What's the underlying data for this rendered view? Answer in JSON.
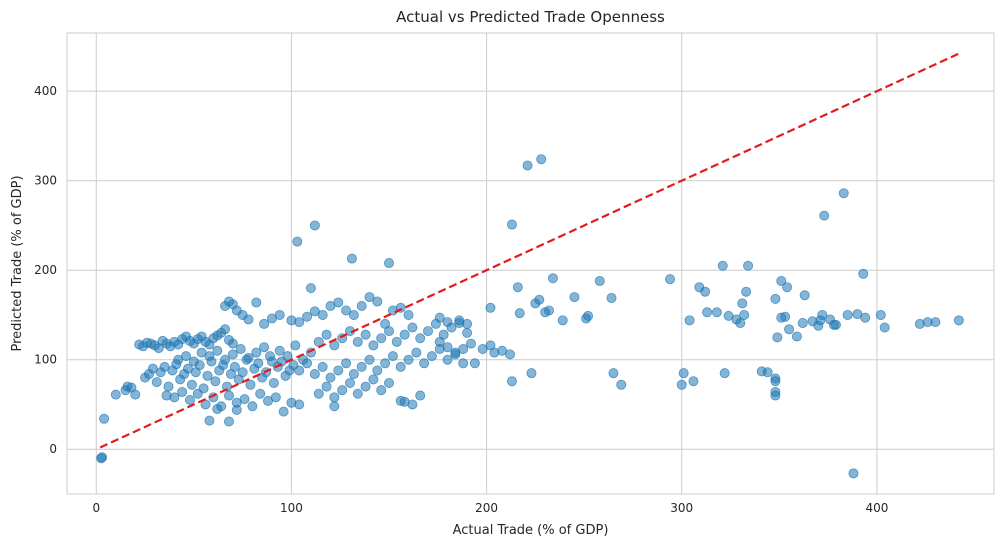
{
  "chart_data": {
    "type": "scatter",
    "title": "Actual vs Predicted Trade Openness",
    "xlabel": "Actual Trade (% of GDP)",
    "ylabel": "Predicted Trade (% of GDP)",
    "xlim": [
      -15,
      460
    ],
    "ylim": [
      -50,
      465
    ],
    "xticks": [
      0,
      100,
      200,
      300,
      400
    ],
    "yticks": [
      0,
      100,
      200,
      300,
      400
    ],
    "grid": true,
    "point_color": "#1f77b4",
    "point_opacity": 0.55,
    "reference_line": {
      "x": [
        2,
        442
      ],
      "y": [
        2,
        442
      ],
      "color": "#e41a1c",
      "style": "dashed"
    },
    "series": [
      {
        "points": [
          [
            2.5,
            -10
          ],
          [
            3,
            -9
          ],
          [
            4,
            34
          ],
          [
            10,
            61
          ],
          [
            15,
            66
          ],
          [
            16,
            70
          ],
          [
            18,
            69
          ],
          [
            20,
            61
          ],
          [
            22,
            117
          ],
          [
            24,
            115
          ],
          [
            26,
            119
          ],
          [
            28,
            118
          ],
          [
            30,
            116
          ],
          [
            32,
            113
          ],
          [
            34,
            121
          ],
          [
            36,
            118
          ],
          [
            38,
            115
          ],
          [
            40,
            120
          ],
          [
            42,
            117
          ],
          [
            44,
            123
          ],
          [
            46,
            126
          ],
          [
            48,
            121
          ],
          [
            50,
            118
          ],
          [
            52,
            123
          ],
          [
            54,
            126
          ],
          [
            56,
            120
          ],
          [
            58,
            117
          ],
          [
            60,
            124
          ],
          [
            62,
            127
          ],
          [
            64,
            130
          ],
          [
            66,
            134
          ],
          [
            68,
            122
          ],
          [
            70,
            118
          ],
          [
            25,
            80
          ],
          [
            27,
            84
          ],
          [
            29,
            90
          ],
          [
            31,
            75
          ],
          [
            33,
            86
          ],
          [
            35,
            92
          ],
          [
            37,
            70
          ],
          [
            39,
            88
          ],
          [
            41,
            95
          ],
          [
            43,
            78
          ],
          [
            45,
            84
          ],
          [
            47,
            90
          ],
          [
            49,
            72
          ],
          [
            51,
            86
          ],
          [
            53,
            94
          ],
          [
            55,
            68
          ],
          [
            57,
            82
          ],
          [
            59,
            98
          ],
          [
            61,
            76
          ],
          [
            63,
            88
          ],
          [
            65,
            94
          ],
          [
            67,
            70
          ],
          [
            69,
            84
          ],
          [
            71,
            92
          ],
          [
            73,
            78
          ],
          [
            75,
            86
          ],
          [
            77,
            100
          ],
          [
            79,
            72
          ],
          [
            81,
            90
          ],
          [
            83,
            96
          ],
          [
            85,
            80
          ],
          [
            87,
            86
          ],
          [
            89,
            104
          ],
          [
            91,
            74
          ],
          [
            93,
            92
          ],
          [
            95,
            98
          ],
          [
            97,
            82
          ],
          [
            99,
            88
          ],
          [
            101,
            94
          ],
          [
            36,
            60
          ],
          [
            40,
            58
          ],
          [
            44,
            64
          ],
          [
            48,
            55
          ],
          [
            52,
            62
          ],
          [
            56,
            50
          ],
          [
            60,
            58
          ],
          [
            64,
            48
          ],
          [
            68,
            60
          ],
          [
            72,
            52
          ],
          [
            76,
            56
          ],
          [
            80,
            48
          ],
          [
            84,
            62
          ],
          [
            88,
            54
          ],
          [
            92,
            58
          ],
          [
            96,
            42
          ],
          [
            100,
            52
          ],
          [
            104,
            50
          ],
          [
            58,
            32
          ],
          [
            68,
            31
          ],
          [
            62,
            45
          ],
          [
            72,
            44
          ],
          [
            42,
            100
          ],
          [
            46,
            104
          ],
          [
            50,
            98
          ],
          [
            54,
            108
          ],
          [
            58,
            104
          ],
          [
            62,
            110
          ],
          [
            66,
            100
          ],
          [
            70,
            106
          ],
          [
            74,
            112
          ],
          [
            78,
            102
          ],
          [
            82,
            108
          ],
          [
            86,
            114
          ],
          [
            90,
            98
          ],
          [
            94,
            110
          ],
          [
            98,
            104
          ],
          [
            102,
            116
          ],
          [
            106,
            100
          ],
          [
            110,
            108
          ],
          [
            66,
            160
          ],
          [
            68,
            165
          ],
          [
            70,
            162
          ],
          [
            72,
            155
          ],
          [
            75,
            150
          ],
          [
            82,
            164
          ],
          [
            78,
            145
          ],
          [
            86,
            140
          ],
          [
            90,
            146
          ],
          [
            94,
            150
          ],
          [
            100,
            144
          ],
          [
            104,
            142
          ],
          [
            108,
            148
          ],
          [
            112,
            154
          ],
          [
            110,
            180
          ],
          [
            103,
            232
          ],
          [
            112,
            250
          ],
          [
            131,
            213
          ],
          [
            150,
            208
          ],
          [
            104,
            88
          ],
          [
            108,
            96
          ],
          [
            112,
            84
          ],
          [
            116,
            92
          ],
          [
            120,
            80
          ],
          [
            124,
            88
          ],
          [
            128,
            96
          ],
          [
            132,
            84
          ],
          [
            136,
            92
          ],
          [
            140,
            100
          ],
          [
            144,
            88
          ],
          [
            148,
            96
          ],
          [
            152,
            104
          ],
          [
            156,
            92
          ],
          [
            160,
            100
          ],
          [
            164,
            108
          ],
          [
            168,
            96
          ],
          [
            172,
            104
          ],
          [
            176,
            112
          ],
          [
            180,
            100
          ],
          [
            184,
            108
          ],
          [
            188,
            96
          ],
          [
            114,
            62
          ],
          [
            118,
            70
          ],
          [
            122,
            58
          ],
          [
            126,
            66
          ],
          [
            130,
            74
          ],
          [
            134,
            62
          ],
          [
            138,
            70
          ],
          [
            142,
            78
          ],
          [
            146,
            66
          ],
          [
            150,
            74
          ],
          [
            122,
            48
          ],
          [
            156,
            54
          ],
          [
            158,
            53
          ],
          [
            162,
            50
          ],
          [
            166,
            60
          ],
          [
            114,
            120
          ],
          [
            118,
            128
          ],
          [
            122,
            116
          ],
          [
            126,
            124
          ],
          [
            130,
            132
          ],
          [
            134,
            120
          ],
          [
            138,
            128
          ],
          [
            142,
            116
          ],
          [
            146,
            124
          ],
          [
            150,
            132
          ],
          [
            154,
            120
          ],
          [
            158,
            128
          ],
          [
            162,
            136
          ],
          [
            166,
            124
          ],
          [
            170,
            132
          ],
          [
            174,
            140
          ],
          [
            178,
            128
          ],
          [
            182,
            136
          ],
          [
            186,
            144
          ],
          [
            190,
            130
          ],
          [
            116,
            150
          ],
          [
            120,
            160
          ],
          [
            124,
            164
          ],
          [
            128,
            155
          ],
          [
            132,
            150
          ],
          [
            136,
            160
          ],
          [
            140,
            170
          ],
          [
            144,
            165
          ],
          [
            148,
            140
          ],
          [
            152,
            155
          ],
          [
            156,
            158
          ],
          [
            160,
            150
          ],
          [
            176,
            147
          ],
          [
            180,
            142
          ],
          [
            186,
            141
          ],
          [
            190,
            140
          ],
          [
            176,
            120
          ],
          [
            180,
            114
          ],
          [
            184,
            106
          ],
          [
            188,
            112
          ],
          [
            192,
            118
          ],
          [
            194,
            96
          ],
          [
            198,
            112
          ],
          [
            202,
            116
          ],
          [
            204,
            108
          ],
          [
            208,
            110
          ],
          [
            212,
            106
          ],
          [
            213,
            76
          ],
          [
            202,
            158
          ],
          [
            213,
            251
          ],
          [
            216,
            181
          ],
          [
            217,
            152
          ],
          [
            221,
            317
          ],
          [
            223,
            85
          ],
          [
            225,
            163
          ],
          [
            227,
            167
          ],
          [
            228,
            324
          ],
          [
            230,
            153
          ],
          [
            232,
            155
          ],
          [
            234,
            191
          ],
          [
            239,
            144
          ],
          [
            245,
            170
          ],
          [
            251,
            146
          ],
          [
            252,
            149
          ],
          [
            258,
            188
          ],
          [
            264,
            169
          ],
          [
            265,
            85
          ],
          [
            269,
            72
          ],
          [
            294,
            190
          ],
          [
            300,
            72
          ],
          [
            301,
            85
          ],
          [
            304,
            144
          ],
          [
            306,
            76
          ],
          [
            309,
            181
          ],
          [
            312,
            176
          ],
          [
            313,
            153
          ],
          [
            318,
            153
          ],
          [
            321,
            205
          ],
          [
            322,
            85
          ],
          [
            324,
            149
          ],
          [
            328,
            145
          ],
          [
            331,
            163
          ],
          [
            333,
            176
          ],
          [
            334,
            205
          ],
          [
            330,
            141
          ],
          [
            332,
            150
          ],
          [
            341,
            87
          ],
          [
            344,
            86
          ],
          [
            348,
            79
          ],
          [
            348,
            76
          ],
          [
            348,
            64
          ],
          [
            348,
            60
          ],
          [
            348,
            168
          ],
          [
            349,
            125
          ],
          [
            351,
            188
          ],
          [
            351,
            147
          ],
          [
            353,
            148
          ],
          [
            354,
            181
          ],
          [
            355,
            134
          ],
          [
            359,
            126
          ],
          [
            362,
            141
          ],
          [
            363,
            172
          ],
          [
            367,
            143
          ],
          [
            370,
            138
          ],
          [
            371,
            144
          ],
          [
            372,
            150
          ],
          [
            373,
            261
          ],
          [
            376,
            145
          ],
          [
            378,
            139
          ],
          [
            379,
            139
          ],
          [
            383,
            286
          ],
          [
            385,
            150
          ],
          [
            388,
            -27
          ],
          [
            390,
            151
          ],
          [
            393,
            196
          ],
          [
            394,
            147
          ],
          [
            402,
            150
          ],
          [
            404,
            136
          ],
          [
            422,
            140
          ],
          [
            426,
            142
          ],
          [
            430,
            142
          ],
          [
            442,
            144
          ]
        ]
      }
    ]
  }
}
